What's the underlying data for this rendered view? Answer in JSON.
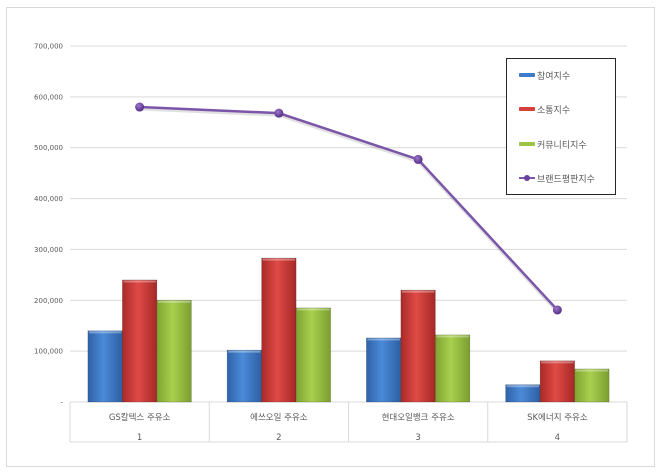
{
  "chart_data": {
    "type": "bar",
    "title": "",
    "xlabel": "",
    "ylabel": "",
    "ylim": [
      0,
      700000
    ],
    "y_ticks": [
      "-",
      "100,000",
      "200,000",
      "300,000",
      "400,000",
      "500,000",
      "600,000",
      "700,000"
    ],
    "grid": true,
    "legend_position": "right-top-inside",
    "categories": [
      "GS칼텍스 주유소",
      "에쓰오일 주유소",
      "현대오일뱅크 주유소",
      "SK에너지 주유소"
    ],
    "category_numbers": [
      "1",
      "2",
      "3",
      "4"
    ],
    "series": [
      {
        "name": "참여지수",
        "type": "bar",
        "color": "#3f7bcc",
        "values": [
          140000,
          102000,
          126000,
          34000
        ]
      },
      {
        "name": "소통지수",
        "type": "bar",
        "color": "#d63f3c",
        "values": [
          240000,
          283000,
          220000,
          81000
        ]
      },
      {
        "name": "커뮤니티지수",
        "type": "bar",
        "color": "#9cc444",
        "values": [
          200000,
          185000,
          132000,
          65000
        ]
      },
      {
        "name": "브랜드평판지수",
        "type": "line",
        "color": "#7a55a8",
        "values": [
          580000,
          568000,
          477000,
          181000
        ]
      }
    ]
  },
  "legend": {
    "items": [
      {
        "label": "참여지수",
        "color": "#3f7bcc"
      },
      {
        "label": "소통지수",
        "color": "#d63f3c"
      },
      {
        "label": "커뮤니티지수",
        "color": "#9cc444"
      },
      {
        "label": "브랜드평판지수",
        "color": "#7a55a8"
      }
    ]
  }
}
